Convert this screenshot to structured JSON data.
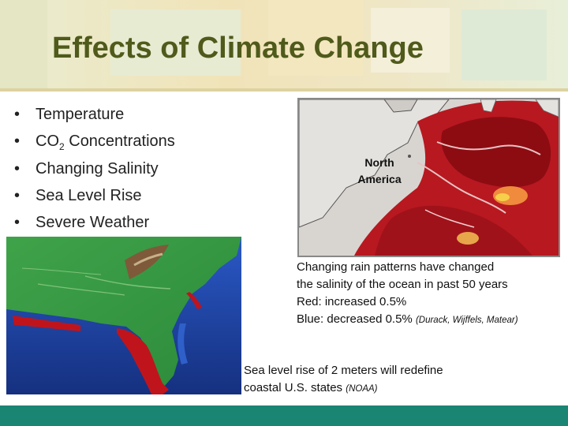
{
  "slide": {
    "title": "Effects of Climate Change",
    "bullets": [
      {
        "text": "Temperature"
      },
      {
        "text_before": "CO",
        "subscript": "2",
        "text_after": " Concentrations"
      },
      {
        "text": "Changing Salinity"
      },
      {
        "text": "Sea Level Rise"
      },
      {
        "text": "Severe Weather"
      }
    ],
    "bullet_symbol": "•",
    "salinity_map": {
      "label_line1": "North",
      "label_line2": "America",
      "caption_line1": "Changing rain patterns have changed",
      "caption_line2": "the salinity of the ocean in past 50 years",
      "caption_line3": "Red: increased 0.5%",
      "caption_line4": "Blue: decreased 0.5%",
      "citation": "(Durack, Wijffels, Matear)"
    },
    "sea_level_map": {
      "caption_line1": "Sea level rise of 2 meters will redefine",
      "caption_line2": "coastal U.S. states",
      "citation": "(NOAA)"
    },
    "colors": {
      "title": "#4f5a1b",
      "footer": "#1b8574",
      "increase_red": "#c0141c",
      "decrease_blue": "#2f5fc8"
    }
  }
}
